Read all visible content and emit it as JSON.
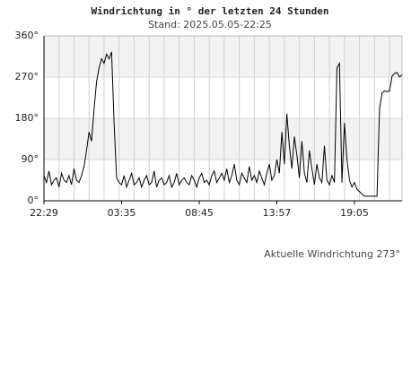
{
  "chart_data": {
    "type": "line",
    "title": "Windrichtung in ° der letzten 24 Stunden",
    "subtitle": "Stand: 2025.05.05-22:25",
    "annotation": "Aktuelle Windrichtung 273°",
    "categories": [
      "22:29",
      null,
      null,
      null,
      null,
      null,
      null,
      null,
      null,
      null,
      null,
      null,
      null,
      null,
      null,
      null,
      null,
      null,
      null,
      null,
      null,
      null,
      null,
      null,
      null,
      null,
      null,
      null,
      null,
      null,
      null,
      "03:35",
      null,
      null,
      null,
      null,
      null,
      null,
      null,
      null,
      null,
      null,
      null,
      null,
      null,
      null,
      null,
      null,
      null,
      null,
      null,
      null,
      null,
      null,
      null,
      null,
      null,
      null,
      null,
      null,
      null,
      null,
      "08:45",
      null,
      null,
      null,
      null,
      null,
      null,
      null,
      null,
      null,
      null,
      null,
      null,
      null,
      null,
      null,
      null,
      null,
      null,
      null,
      null,
      null,
      null,
      null,
      null,
      null,
      null,
      null,
      null,
      null,
      null,
      "13:57",
      null,
      null,
      null,
      null,
      null,
      null,
      null,
      null,
      null,
      null,
      null,
      null,
      null,
      null,
      null,
      null,
      null,
      null,
      null,
      null,
      null,
      null,
      null,
      null,
      null,
      null,
      null,
      null,
      null,
      null,
      "19:05",
      null,
      null,
      null,
      null,
      null,
      null,
      null,
      null,
      null,
      null,
      null,
      null,
      null,
      null,
      null,
      null,
      null,
      null,
      null
    ],
    "series": [
      {
        "color": "#000000",
        "values": [
          55,
          40,
          65,
          35,
          45,
          50,
          30,
          60,
          45,
          40,
          55,
          35,
          70,
          45,
          40,
          55,
          75,
          110,
          150,
          130,
          200,
          260,
          290,
          310,
          300,
          320,
          310,
          325,
          170,
          50,
          40,
          35,
          55,
          30,
          45,
          60,
          35,
          40,
          50,
          30,
          45,
          55,
          35,
          40,
          65,
          30,
          45,
          50,
          35,
          40,
          55,
          30,
          40,
          60,
          35,
          45,
          50,
          40,
          35,
          55,
          45,
          30,
          50,
          60,
          40,
          45,
          35,
          55,
          65,
          40,
          50,
          60,
          45,
          70,
          40,
          55,
          80,
          45,
          35,
          60,
          50,
          40,
          75,
          45,
          55,
          40,
          65,
          50,
          35,
          60,
          80,
          45,
          55,
          90,
          60,
          150,
          80,
          190,
          120,
          70,
          140,
          100,
          50,
          130,
          60,
          40,
          110,
          70,
          35,
          80,
          50,
          40,
          120,
          45,
          35,
          55,
          40,
          290,
          300,
          40,
          170,
          90,
          45,
          30,
          40,
          25,
          20,
          15,
          10,
          10,
          10,
          10,
          10,
          10,
          200,
          235,
          240,
          238,
          240,
          272,
          278,
          280,
          270,
          275
        ]
      }
    ],
    "ylim": [
      0,
      360
    ],
    "yticks": [
      {
        "value": 0,
        "label": "0°"
      },
      {
        "value": 90,
        "label": "90°"
      },
      {
        "value": 180,
        "label": "180°"
      },
      {
        "value": 270,
        "label": "270°"
      },
      {
        "value": 360,
        "label": "360°"
      }
    ],
    "grid": true
  }
}
